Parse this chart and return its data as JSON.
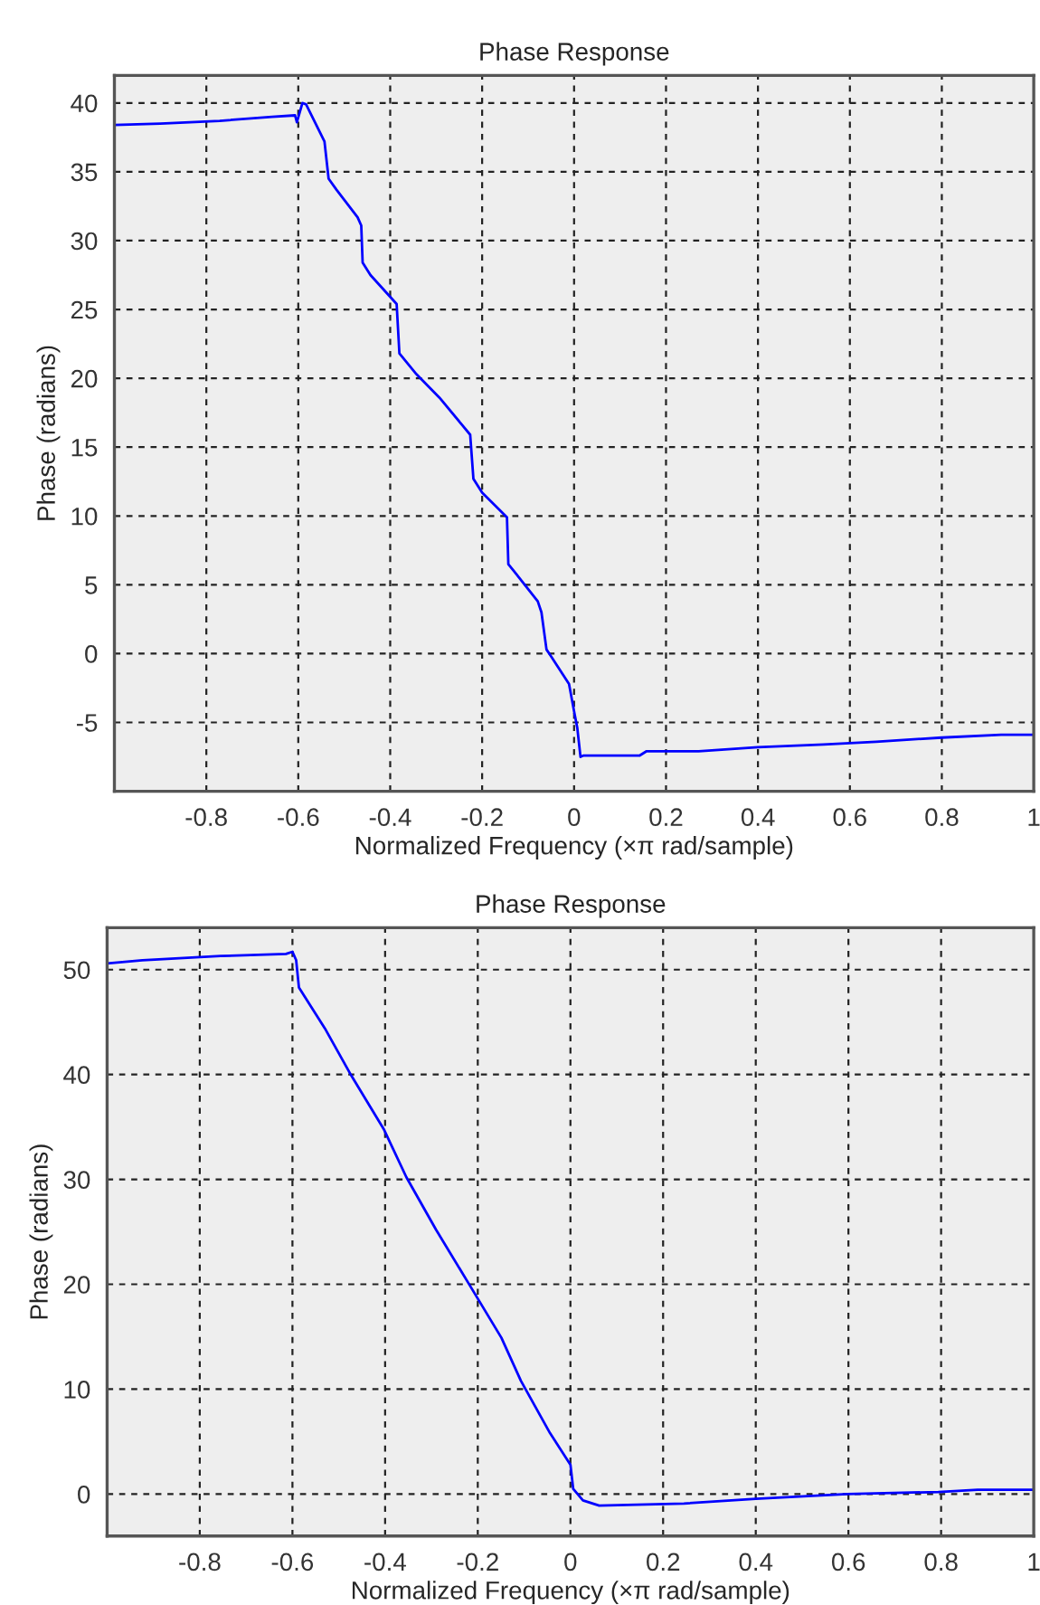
{
  "chart_data": [
    {
      "type": "line",
      "title": "Phase Response",
      "xlabel": "Normalized Frequency (×π rad/sample)",
      "ylabel": "Phase (radians)",
      "xlim": [
        -1,
        1
      ],
      "ylim": [
        -10,
        42
      ],
      "xticks": [
        -0.8,
        -0.6,
        -0.4,
        -0.2,
        0,
        0.2,
        0.4,
        0.6,
        0.8,
        1
      ],
      "yticks": [
        -5,
        0,
        5,
        10,
        15,
        20,
        25,
        30,
        35,
        40
      ],
      "grid": true,
      "line_style": "solid",
      "series": [
        {
          "color": "#0000ff",
          "x": [
            -1,
            -0.9,
            -0.771,
            -0.657,
            -0.607,
            -0.603,
            -0.591,
            -0.583,
            -0.543,
            -0.534,
            -0.517,
            -0.471,
            -0.463,
            -0.46,
            -0.443,
            -0.386,
            -0.38,
            -0.343,
            -0.293,
            -0.226,
            -0.219,
            -0.2,
            -0.146,
            -0.143,
            -0.131,
            -0.079,
            -0.071,
            -0.06,
            -0.05,
            -0.011,
            0,
            0.007,
            0.014,
            0.021,
            0.143,
            0.157,
            0.271,
            0.4,
            0.543,
            0.657,
            0.8,
            0.929,
            1
          ],
          "values": [
            38.4,
            38.5,
            38.7,
            39.0,
            39.1,
            38.6,
            40.0,
            39.9,
            37.2,
            34.5,
            33.7,
            31.7,
            31.1,
            28.4,
            27.5,
            25.4,
            21.8,
            20.3,
            18.6,
            15.9,
            12.7,
            11.7,
            9.9,
            6.5,
            6.0,
            3.8,
            3.0,
            0.3,
            -0.2,
            -2.2,
            -4.2,
            -5.4,
            -7.5,
            -7.4,
            -7.4,
            -7.1,
            -7.1,
            -6.8,
            -6.6,
            -6.4,
            -6.1,
            -5.9,
            -5.9
          ]
        }
      ]
    },
    {
      "type": "line",
      "title": "Phase Response",
      "xlabel": "Normalized Frequency (×π rad/sample)",
      "ylabel": "Phase (radians)",
      "xlim": [
        -1,
        1
      ],
      "ylim": [
        -4,
        54
      ],
      "xticks": [
        -0.8,
        -0.6,
        -0.4,
        -0.2,
        0,
        0.2,
        0.4,
        0.6,
        0.8,
        1
      ],
      "yticks": [
        0,
        10,
        20,
        30,
        40,
        50
      ],
      "grid": true,
      "line_style": "solid",
      "series": [
        {
          "color": "#0000ff",
          "x": [
            -1,
            -0.924,
            -0.755,
            -0.614,
            -0.6,
            -0.592,
            -0.586,
            -0.53,
            -0.473,
            -0.403,
            -0.354,
            -0.29,
            -0.22,
            -0.149,
            -0.107,
            -0.044,
            0,
            0.006,
            0.027,
            0.062,
            0.245,
            0.4,
            0.597,
            0.794,
            0.879,
            1
          ],
          "values": [
            50.6,
            50.9,
            51.3,
            51.5,
            51.7,
            50.9,
            48.3,
            44.4,
            39.9,
            34.8,
            30.2,
            25.2,
            20.1,
            14.9,
            10.8,
            5.8,
            2.8,
            0.5,
            -0.6,
            -1.1,
            -0.9,
            -0.45,
            0,
            0.2,
            0.4,
            0.4
          ]
        }
      ]
    }
  ]
}
